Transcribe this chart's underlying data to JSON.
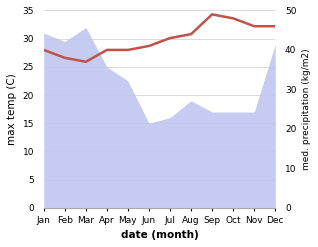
{
  "months": [
    "Jan",
    "Feb",
    "Mar",
    "Apr",
    "May",
    "Jun",
    "Jul",
    "Aug",
    "Sep",
    "Oct",
    "Nov",
    "Dec"
  ],
  "month_x": [
    1,
    2,
    3,
    4,
    5,
    6,
    7,
    8,
    9,
    10,
    11,
    12
  ],
  "temp": [
    31,
    29.5,
    32,
    25,
    22.5,
    15,
    16,
    19,
    17,
    17,
    17,
    29
  ],
  "precip": [
    40,
    38,
    37,
    40,
    40,
    41,
    43,
    44,
    49,
    48,
    46,
    46
  ],
  "temp_color": "#c0524a",
  "precip_fill_color": "#bcc4ef",
  "temp_ylim": [
    0,
    35
  ],
  "precip_ylim": [
    0,
    50
  ],
  "temp_yticks": [
    0,
    5,
    10,
    15,
    20,
    25,
    30,
    35
  ],
  "precip_yticks": [
    0,
    10,
    20,
    30,
    40,
    50
  ],
  "xlabel": "date (month)",
  "ylabel_left": "max temp (C)",
  "ylabel_right": "med. precipitation (kg/m2)",
  "bg_color": "#ffffff",
  "grid_color": "#cccccc"
}
